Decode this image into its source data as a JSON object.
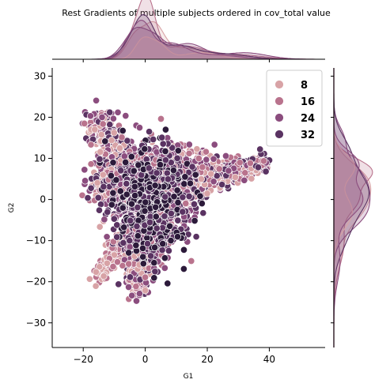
{
  "chart_data": {
    "type": "scatter",
    "title": "Rest Gradients of multiple subjects ordered in cov_total value",
    "xlabel": "G1",
    "ylabel": "G2",
    "xlim": [
      -30,
      58
    ],
    "ylim": [
      -36,
      32
    ],
    "xticks": [
      -20,
      0,
      20,
      40
    ],
    "yticks": [
      -30,
      -20,
      -10,
      0,
      10,
      20,
      30
    ],
    "grid": false,
    "legend_position": "top-right",
    "hue_levels": [
      {
        "label": "8",
        "color": "#d8a3a6"
      },
      {
        "label": "16",
        "color": "#b9738d"
      },
      {
        "label": "24",
        "color": "#8b4d7e"
      },
      {
        "label": "32",
        "color": "#5a3362"
      }
    ],
    "marginal_x": {
      "type": "kde",
      "peaks_approx": [
        -3,
        1,
        12
      ]
    },
    "marginal_y": {
      "type": "kde",
      "peaks_approx": [
        5,
        0
      ]
    },
    "series": [
      {
        "name": "cov_total",
        "regions": [
          {
            "shape": "upper-left-arm",
            "x": [
              -17,
              -2
            ],
            "y": [
              5,
              20
            ]
          },
          {
            "shape": "right-arm",
            "x": [
              0,
              40
            ],
            "y": [
              -2,
              10
            ]
          },
          {
            "shape": "lower-arm",
            "x": [
              -15,
              10
            ],
            "y": [
              -24,
              -2
            ]
          },
          {
            "shape": "core",
            "x": [
              -8,
              15
            ],
            "y": [
              -10,
              12
            ]
          }
        ]
      }
    ]
  }
}
